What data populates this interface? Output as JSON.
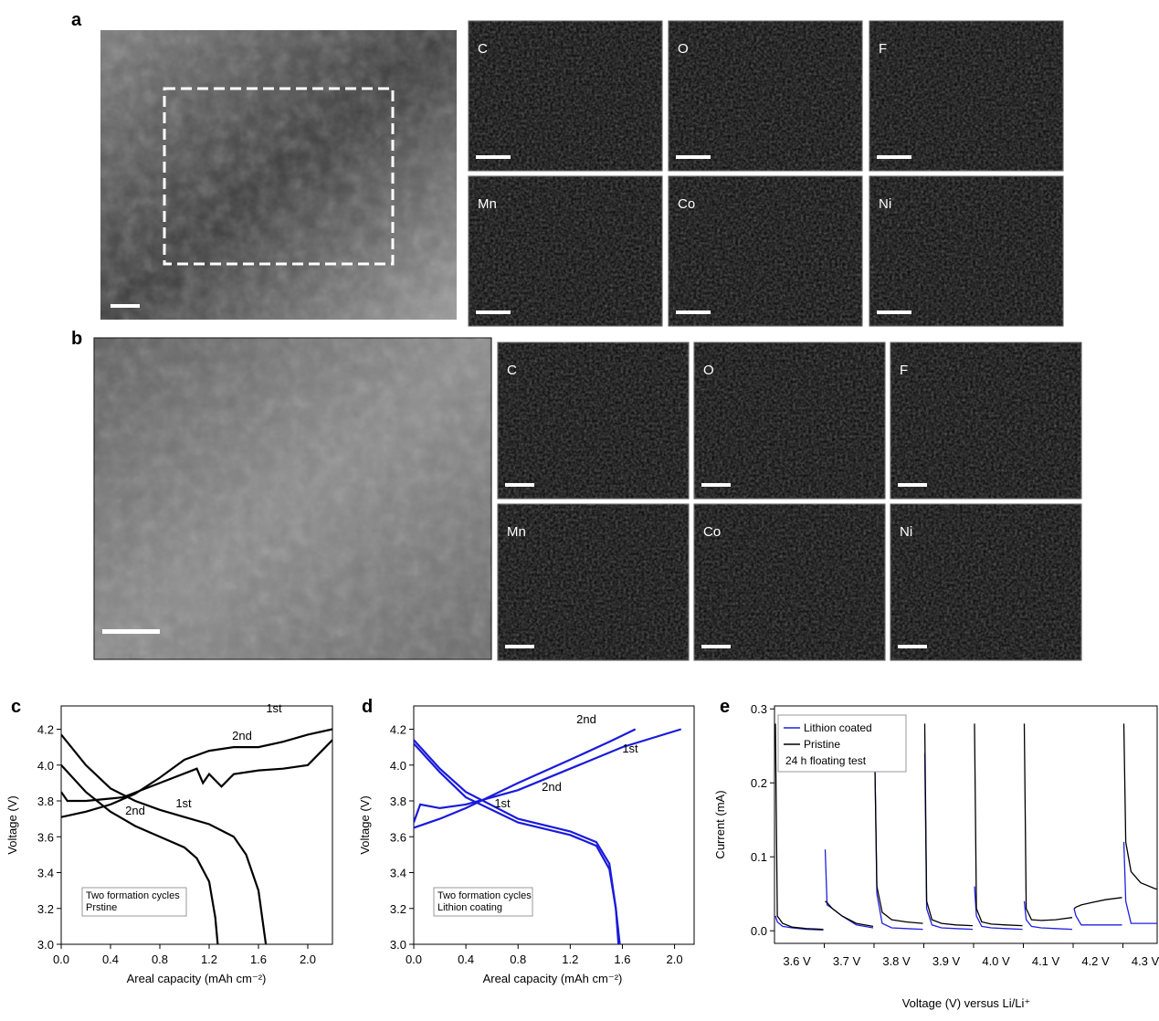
{
  "panel_a": {
    "label": "a",
    "maps": [
      "C",
      "O",
      "F",
      "Mn",
      "Co",
      "Ni"
    ]
  },
  "panel_b": {
    "label": "b",
    "maps": [
      "C",
      "O",
      "F",
      "Mn",
      "Co",
      "Ni"
    ]
  },
  "chart_data": [
    {
      "type": "line",
      "panel_label": "c",
      "xlabel": "Areal capacity (mAh cm⁻²)",
      "ylabel": "Voltage (V)",
      "xlim": [
        0,
        2.2
      ],
      "ylim": [
        3.0,
        4.33
      ],
      "xticks": [
        {
          "value": 0,
          "label": "0.0"
        },
        0.4,
        0.8,
        1.2,
        1.6,
        {
          "value": 2,
          "label": "2.0"
        }
      ],
      "yticks": [
        {
          "value": 3,
          "label": "3.0"
        },
        3.2,
        3.4,
        3.6,
        3.8,
        {
          "value": 4,
          "label": "4.0"
        },
        4.2
      ],
      "annotations": [
        "1st",
        "2nd",
        "1st",
        "2nd"
      ],
      "legend_text": [
        "Two formation cycles",
        "Prstine"
      ],
      "series": [
        {
          "color": "#000000",
          "x": [
            0,
            0.2,
            0.4,
            0.6,
            0.8,
            1.0,
            1.2,
            1.4,
            1.5,
            1.6,
            1.66
          ],
          "values": [
            4.17,
            4.0,
            3.87,
            3.8,
            3.75,
            3.71,
            3.67,
            3.6,
            3.5,
            3.3,
            3.0
          ]
        },
        {
          "color": "#000000",
          "x": [
            0,
            0.2,
            0.4,
            0.6,
            0.8,
            1.0,
            1.1,
            1.2,
            1.25,
            1.27
          ],
          "values": [
            4.0,
            3.85,
            3.74,
            3.66,
            3.6,
            3.54,
            3.48,
            3.35,
            3.15,
            3.0
          ]
        },
        {
          "color": "#000000",
          "x": [
            0,
            0.2,
            0.4,
            0.6,
            0.8,
            1.0,
            1.2,
            1.4,
            1.6,
            1.8,
            2.0,
            2.2
          ],
          "values": [
            3.71,
            3.74,
            3.78,
            3.84,
            3.93,
            4.03,
            4.08,
            4.1,
            4.1,
            4.13,
            4.17,
            4.2
          ]
        },
        {
          "color": "#000000",
          "x": [
            0,
            0.05,
            0.2,
            0.5,
            0.8,
            1.1,
            1.15,
            1.2,
            1.3,
            1.4,
            1.6,
            1.8,
            2.0,
            2.2
          ],
          "values": [
            3.85,
            3.8,
            3.8,
            3.82,
            3.9,
            3.98,
            3.9,
            3.95,
            3.88,
            3.95,
            3.97,
            3.98,
            4.0,
            4.14
          ]
        }
      ]
    },
    {
      "type": "line",
      "panel_label": "d",
      "xlabel": "Areal capacity (mAh cm⁻²)",
      "ylabel": "Voltage (V)",
      "xlim": [
        0,
        2.15
      ],
      "ylim": [
        3.0,
        4.33
      ],
      "xticks": [
        {
          "value": 0,
          "label": "0.0"
        },
        0.4,
        0.8,
        1.2,
        1.6,
        {
          "value": 2,
          "label": "2.0"
        }
      ],
      "yticks": [
        {
          "value": 3,
          "label": "3.0"
        },
        3.2,
        3.4,
        3.6,
        3.8,
        {
          "value": 4,
          "label": "4.0"
        },
        4.2
      ],
      "annotations": [
        "2nd",
        "1st",
        "2nd",
        "1st"
      ],
      "legend_text": [
        "Two formation cycles",
        "Lithion coating"
      ],
      "series": [
        {
          "color": "#1a1adb",
          "x": [
            0,
            0.05,
            0.2,
            0.4,
            0.8,
            1.2,
            1.6,
            2.05
          ],
          "values": [
            3.68,
            3.78,
            3.76,
            3.78,
            3.86,
            3.98,
            4.1,
            4.2
          ]
        },
        {
          "color": "#1a1adb",
          "x": [
            0,
            0.2,
            0.4,
            0.8,
            1.2,
            1.5,
            1.7
          ],
          "values": [
            3.65,
            3.7,
            3.76,
            3.9,
            4.03,
            4.13,
            4.2
          ]
        },
        {
          "color": "#1a1adb",
          "x": [
            0,
            0.2,
            0.4,
            0.8,
            1.2,
            1.4,
            1.5,
            1.55,
            1.58
          ],
          "values": [
            4.14,
            3.98,
            3.85,
            3.7,
            3.63,
            3.57,
            3.45,
            3.2,
            3.0
          ]
        },
        {
          "color": "#1a1adb",
          "x": [
            0,
            0.2,
            0.4,
            0.8,
            1.2,
            1.4,
            1.5,
            1.55,
            1.57
          ],
          "values": [
            4.12,
            3.96,
            3.82,
            3.68,
            3.61,
            3.55,
            3.42,
            3.2,
            3.0
          ]
        }
      ]
    },
    {
      "type": "line",
      "panel_label": "e",
      "xlabel": "Voltage (V) versus Li/Li⁺",
      "ylabel": "Current (mA)",
      "ylim": [
        -0.017,
        0.304
      ],
      "yticks": [
        {
          "value": 0,
          "label": "0.0"
        },
        0.1,
        0.2,
        0.3
      ],
      "categories": [
        "3.6 V",
        "3.7 V",
        "3.8 V",
        "3.9 V",
        "4.0 V",
        "4.1 V",
        "4.2 V",
        "4.3 V"
      ],
      "legend": "upper left",
      "legend_note": "24 h floating test",
      "series": [
        {
          "name": "Lithion coated",
          "color": "#2020e0",
          "values": [
            [
              0.02,
              0.012,
              0.006,
              0.004,
              0.002,
              0.001
            ],
            [
              0.11,
              0.035,
              0.03,
              0.02,
              0.008,
              0.004
            ],
            [
              0.22,
              0.05,
              0.01,
              0.004,
              0.003,
              0.002
            ],
            [
              0.24,
              0.03,
              0.008,
              0.004,
              0.003,
              0.002
            ],
            [
              0.06,
              0.02,
              0.006,
              0.004,
              0.003,
              0.002
            ],
            [
              0.04,
              0.015,
              0.006,
              0.004,
              0.003,
              0.002
            ],
            [
              0.03,
              0.02,
              0.008,
              0.008,
              0.008,
              0.008
            ],
            [
              0.12,
              0.04,
              0.01,
              0.01,
              0.01,
              0.01
            ]
          ]
        },
        {
          "name": "Pristine",
          "color": "#000000",
          "values": [
            [
              0.28,
              0.02,
              0.01,
              0.005,
              0.003,
              0.002
            ],
            [
              0.04,
              0.038,
              0.03,
              0.02,
              0.01,
              0.006
            ],
            [
              0.22,
              0.06,
              0.025,
              0.015,
              0.012,
              0.01
            ],
            [
              0.28,
              0.04,
              0.015,
              0.01,
              0.008,
              0.007
            ],
            [
              0.28,
              0.03,
              0.012,
              0.009,
              0.008,
              0.007
            ],
            [
              0.28,
              0.03,
              0.015,
              0.014,
              0.015,
              0.018
            ],
            [
              0.03,
              0.032,
              0.035,
              0.038,
              0.042,
              0.045
            ],
            [
              0.28,
              0.12,
              0.08,
              0.065,
              0.057,
              0.053
            ]
          ]
        }
      ]
    }
  ]
}
